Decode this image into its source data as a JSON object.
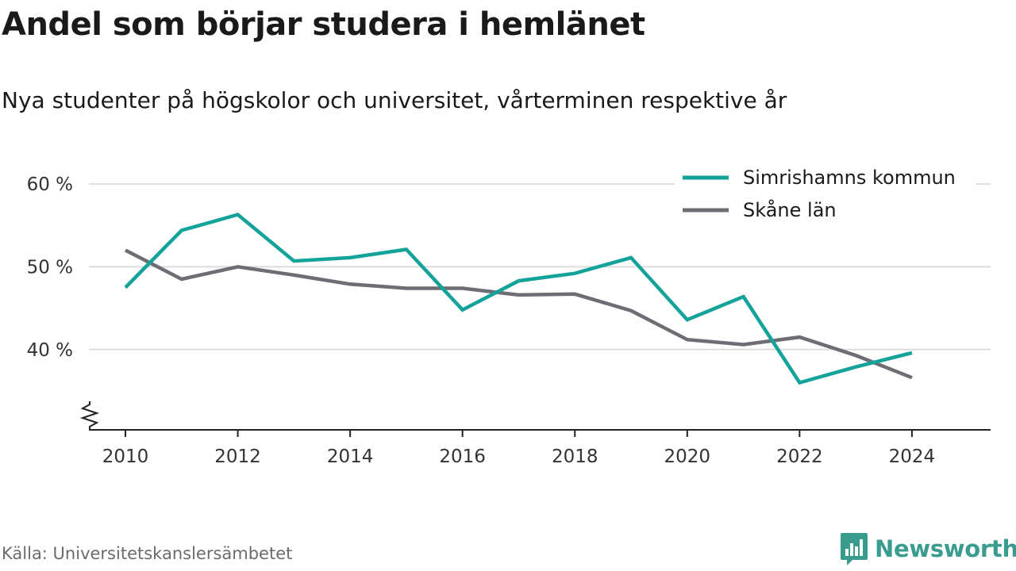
{
  "title": "Andel som börjar studera i hemlänet",
  "subtitle": "Nya studenter på högskolor och universitet, vårterminen respektive år",
  "source": "Källa: Universitetskanslersämbetet",
  "brand": {
    "name": "Newsworthy",
    "icon": "newsworthy-logo-icon",
    "color": "#3a9c8f"
  },
  "colors": {
    "simrishamn": "#14a39a",
    "skane": "#6e6d75",
    "grid": "#dddddd",
    "axis": "#222222"
  },
  "chart_data": {
    "type": "line",
    "title": "Andel som börjar studera i hemlänet",
    "subtitle": "Nya studenter på högskolor och universitet, vårterminen respektive år",
    "x": [
      2010,
      2011,
      2012,
      2013,
      2014,
      2015,
      2016,
      2017,
      2018,
      2019,
      2020,
      2021,
      2022,
      2023,
      2024
    ],
    "series": [
      {
        "name": "Simrishamns kommun",
        "color": "#14a39a",
        "values": [
          47.5,
          54.4,
          56.3,
          50.7,
          51.1,
          52.1,
          44.8,
          48.3,
          49.2,
          51.1,
          43.6,
          46.4,
          36.0,
          37.9,
          39.6
        ]
      },
      {
        "name": "Skåne län",
        "color": "#6e6d75",
        "values": [
          52.0,
          48.5,
          50.0,
          49.0,
          47.9,
          47.4,
          47.4,
          46.6,
          46.7,
          44.7,
          41.2,
          40.6,
          41.5,
          39.3,
          36.6
        ]
      }
    ],
    "xticks": [
      2010,
      2012,
      2014,
      2016,
      2018,
      2020,
      2022,
      2024
    ],
    "yticks": [
      {
        "value": 40,
        "label": "40 %"
      },
      {
        "value": 50,
        "label": "50 %"
      },
      {
        "value": 60,
        "label": "60 %"
      }
    ],
    "xlim": [
      2009.35,
      2025.4
    ],
    "ylim": [
      30.3,
      60
    ],
    "y_axis_broken": true,
    "grid": true,
    "legend_position": "top-right"
  }
}
